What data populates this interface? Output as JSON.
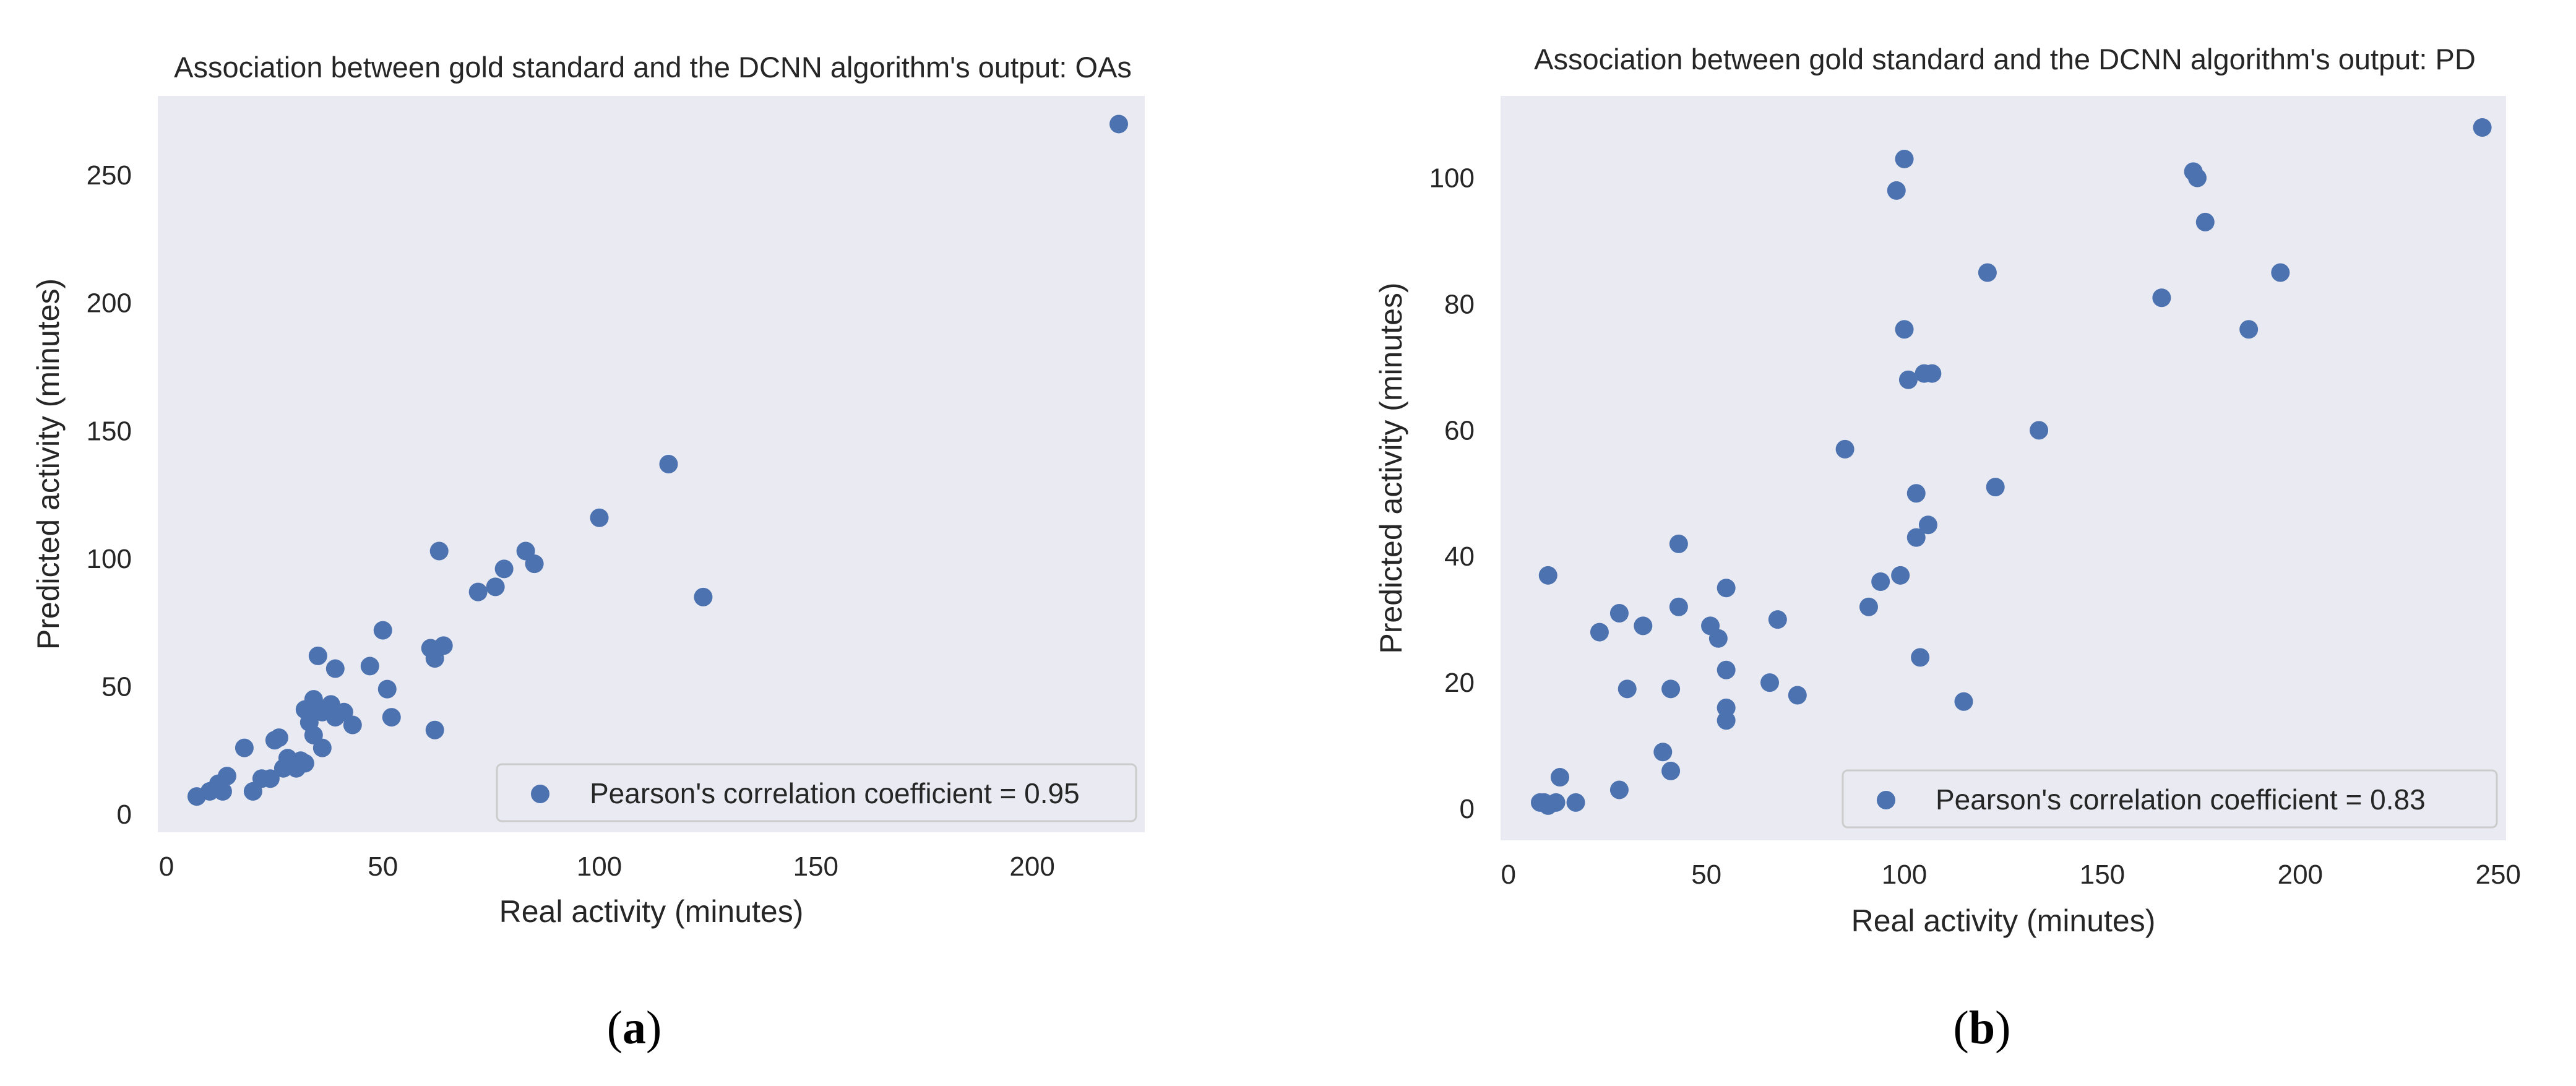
{
  "chart_data": [
    {
      "type": "scatter",
      "title": "Association between gold standard and the DCNN algorithm's output: OAs",
      "xlabel": "Real activity (minutes)",
      "ylabel": "Predicted activity (minutes)",
      "xlim": [
        -2,
        226
      ],
      "ylim": [
        -7,
        281
      ],
      "xticks": [
        0,
        50,
        100,
        150,
        200
      ],
      "yticks": [
        0,
        50,
        100,
        150,
        200,
        250
      ],
      "legend": "Pearson's correlation coefficient = 0.95",
      "legend_position": "bottom-right",
      "point_color": "#4c72b0",
      "background_color": "#eaeaf2",
      "points": [
        [
          220,
          270
        ],
        [
          116,
          137
        ],
        [
          100,
          116
        ],
        [
          124,
          85
        ],
        [
          83,
          103
        ],
        [
          85,
          98
        ],
        [
          78,
          96
        ],
        [
          76,
          89
        ],
        [
          72,
          87
        ],
        [
          63,
          103
        ],
        [
          64,
          66
        ],
        [
          61,
          65
        ],
        [
          62,
          61
        ],
        [
          62,
          33
        ],
        [
          50,
          72
        ],
        [
          47,
          58
        ],
        [
          51,
          49
        ],
        [
          52,
          38
        ],
        [
          43,
          35
        ],
        [
          41,
          40
        ],
        [
          39,
          57
        ],
        [
          38,
          43
        ],
        [
          39,
          38
        ],
        [
          35,
          62
        ],
        [
          34,
          45
        ],
        [
          33,
          40
        ],
        [
          32,
          41
        ],
        [
          36,
          40
        ],
        [
          33,
          36
        ],
        [
          34,
          31
        ],
        [
          36,
          26
        ],
        [
          32,
          20
        ],
        [
          31,
          21
        ],
        [
          30,
          18
        ],
        [
          29,
          20
        ],
        [
          28,
          22
        ],
        [
          27,
          18
        ],
        [
          25,
          29
        ],
        [
          26,
          30
        ],
        [
          24,
          14
        ],
        [
          22,
          14
        ],
        [
          18,
          26
        ],
        [
          20,
          9
        ],
        [
          14,
          15
        ],
        [
          13,
          9
        ],
        [
          12,
          12
        ],
        [
          10,
          9
        ],
        [
          7,
          7
        ]
      ]
    },
    {
      "type": "scatter",
      "title": "Association between gold standard and the DCNN algorithm's output: PD",
      "xlabel": "Real activity (minutes)",
      "ylabel": "Predicted activity (minutes)",
      "xlim": [
        -2,
        252
      ],
      "ylim": [
        -5,
        113
      ],
      "xticks": [
        0,
        50,
        100,
        150,
        200,
        250
      ],
      "yticks": [
        0,
        20,
        40,
        60,
        80,
        100
      ],
      "legend": "Pearson's correlation coefficient = 0.83",
      "legend_position": "bottom-right",
      "point_color": "#4c72b0",
      "background_color": "#eaeaf2",
      "points": [
        [
          246,
          108
        ],
        [
          100,
          103
        ],
        [
          98,
          98
        ],
        [
          173,
          101
        ],
        [
          174,
          100
        ],
        [
          176,
          93
        ],
        [
          121,
          85
        ],
        [
          195,
          85
        ],
        [
          165,
          81
        ],
        [
          187,
          76
        ],
        [
          100,
          76
        ],
        [
          105,
          69
        ],
        [
          107,
          69
        ],
        [
          101,
          68
        ],
        [
          85,
          57
        ],
        [
          134,
          60
        ],
        [
          123,
          51
        ],
        [
          103,
          50
        ],
        [
          106,
          45
        ],
        [
          103,
          43
        ],
        [
          43,
          42
        ],
        [
          10,
          37
        ],
        [
          99,
          37
        ],
        [
          94,
          36
        ],
        [
          55,
          35
        ],
        [
          91,
          32
        ],
        [
          43,
          32
        ],
        [
          28,
          31
        ],
        [
          68,
          30
        ],
        [
          51,
          29
        ],
        [
          34,
          29
        ],
        [
          23,
          28
        ],
        [
          53,
          27
        ],
        [
          104,
          24
        ],
        [
          55,
          22
        ],
        [
          66,
          20
        ],
        [
          30,
          19
        ],
        [
          41,
          19
        ],
        [
          73,
          18
        ],
        [
          115,
          17
        ],
        [
          55,
          16
        ],
        [
          55,
          14
        ],
        [
          39,
          9
        ],
        [
          41,
          6
        ],
        [
          13,
          5
        ],
        [
          28,
          3
        ],
        [
          9,
          1
        ],
        [
          17,
          1
        ],
        [
          12,
          1
        ],
        [
          10,
          0.5
        ],
        [
          8,
          1
        ]
      ]
    }
  ],
  "captions": [
    {
      "open": "(",
      "letter": "a",
      "close": ")"
    },
    {
      "open": "(",
      "letter": "b",
      "close": ")"
    }
  ]
}
